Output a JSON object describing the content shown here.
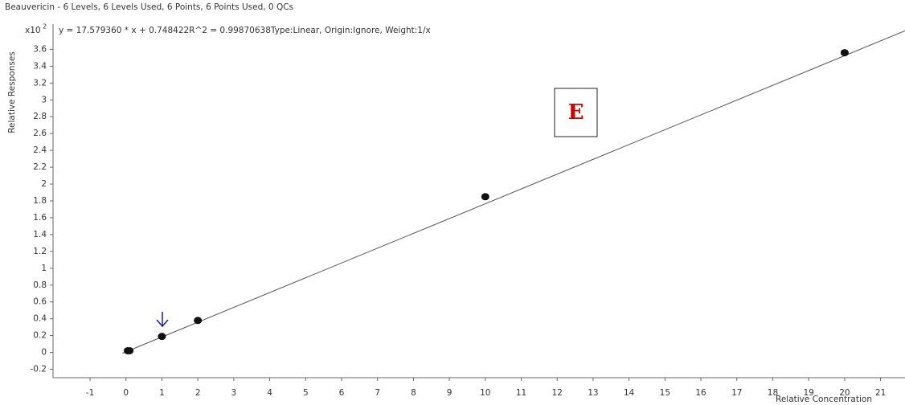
{
  "chart_data": {
    "type": "scatter",
    "title": "Beauvericin - 6 Levels, 6 Levels Used, 6 Points, 6 Points Used, 0 QCs",
    "subtitle": "y = 17.579360 * x  + 0.748422R^2 = 0.99870638Type:Linear, Origin:Ignore, Weight:1/x",
    "y_multiplier": {
      "base": "x10",
      "exponent": "2"
    },
    "y_label": "Relative Responses",
    "x_label": "Relative Concentration",
    "annotation": "E",
    "x": [
      0.05,
      0.1,
      1,
      2,
      10,
      20
    ],
    "values": [
      0.02,
      0.02,
      0.19,
      0.38,
      1.85,
      3.56
    ],
    "color": "#111111",
    "fit_line": {
      "color": "#555555",
      "x": [
        -0.1,
        21.68
      ],
      "y": [
        -0.01,
        3.82
      ]
    },
    "xlim": [
      -2.03,
      21.68
    ],
    "ylim": [
      -0.3,
      3.9
    ],
    "xticks": [
      -1,
      0,
      1,
      2,
      3,
      4,
      5,
      6,
      7,
      8,
      9,
      10,
      11,
      12,
      13,
      14,
      15,
      16,
      17,
      18,
      19,
      20,
      21
    ],
    "yticks": [
      -0.2,
      0,
      0.2,
      0.4,
      0.6,
      0.8,
      1,
      1.2,
      1.4,
      1.6,
      1.8,
      2,
      2.2,
      2.4,
      2.6,
      2.8,
      3,
      3.2,
      3.4,
      3.6
    ],
    "grid": false
  }
}
